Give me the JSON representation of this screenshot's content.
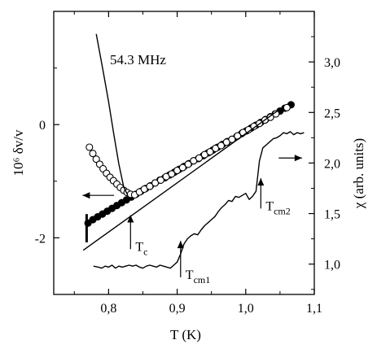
{
  "chart_data": {
    "type": "scatter",
    "annotation_frequency": "54.3 MHz",
    "xlabel": "T (K)",
    "ylabel_left": "10⁶ δv/v",
    "ylabel_right": "χ (arb. units)",
    "xlim": [
      0.72,
      1.1
    ],
    "ylim_left": [
      -3.0,
      2.0
    ],
    "ylim_right": [
      0.7,
      3.5
    ],
    "x_ticks": [
      "0,8",
      "0,9",
      "1,0",
      "1,1"
    ],
    "x_tick_values": [
      0.8,
      0.9,
      1.0,
      1.1
    ],
    "y_left_ticks": [
      "-2",
      "0"
    ],
    "y_left_tick_values": [
      -2,
      0
    ],
    "y_right_ticks": [
      "1,0",
      "1,5",
      "2,0",
      "2,5",
      "3,0"
    ],
    "y_right_tick_values": [
      1.0,
      1.5,
      2.0,
      2.5,
      3.0
    ],
    "annotations": [
      {
        "text_main": "T",
        "text_sub": "c",
        "x": 0.832,
        "axis": "left",
        "y_tip": -1.6,
        "y_tail": -2.2
      },
      {
        "text_main": "T",
        "text_sub": "cm1",
        "x": 0.905,
        "axis": "right",
        "y_tip": 1.23,
        "y_tail": 0.87
      },
      {
        "text_main": "T",
        "text_sub": "cm2",
        "x": 1.022,
        "axis": "right",
        "y_tip": 1.85,
        "y_tail": 1.55
      }
    ],
    "axis_arrows": [
      {
        "points_to": "left axis",
        "x_from": 0.808,
        "x_to": 0.762,
        "y": -1.25,
        "axis": "left"
      },
      {
        "points_to": "right axis",
        "x_from": 1.048,
        "x_to": 1.082,
        "y": 2.05,
        "axis": "right"
      }
    ],
    "series": [
      {
        "marker": "filled-circle",
        "axis": "left",
        "x": [
          0.77,
          0.777,
          0.784,
          0.791,
          0.798,
          0.805,
          0.812,
          0.819,
          0.826,
          0.833,
          0.84,
          0.847,
          0.854,
          0.861,
          0.868,
          0.875,
          0.882,
          0.889,
          0.896,
          0.903,
          0.91,
          0.917,
          0.924,
          0.931,
          0.938,
          0.945,
          0.952,
          0.959,
          0.966,
          0.973,
          0.98,
          0.987,
          0.994,
          1.001,
          1.008,
          1.015,
          1.022,
          1.029,
          1.036,
          1.043,
          1.05,
          1.057,
          1.066
        ],
        "y": [
          -1.74,
          -1.68,
          -1.63,
          -1.58,
          -1.53,
          -1.48,
          -1.43,
          -1.38,
          -1.33,
          -1.28,
          -1.23,
          -1.18,
          -1.13,
          -1.08,
          -1.03,
          -0.98,
          -0.94,
          -0.89,
          -0.84,
          -0.79,
          -0.74,
          -0.69,
          -0.64,
          -0.6,
          -0.55,
          -0.5,
          -0.45,
          -0.4,
          -0.35,
          -0.3,
          -0.26,
          -0.21,
          -0.16,
          -0.11,
          -0.06,
          -0.01,
          0.04,
          0.09,
          0.14,
          0.19,
          0.24,
          0.29,
          0.35
        ]
      },
      {
        "marker": "open-circle",
        "axis": "left",
        "x": [
          0.772,
          0.777,
          0.782,
          0.787,
          0.792,
          0.797,
          0.802,
          0.807,
          0.812,
          0.817,
          0.822,
          0.827,
          0.832,
          0.838,
          0.845,
          0.852,
          0.86,
          0.868,
          0.876,
          0.884,
          0.892,
          0.9,
          0.908,
          0.916,
          0.924,
          0.932,
          0.94,
          0.948,
          0.956,
          0.964,
          0.972,
          0.98,
          0.988,
          0.996,
          1.004,
          1.012,
          1.02,
          1.028,
          1.036,
          1.044,
          1.06
        ],
        "y": [
          -0.4,
          -0.51,
          -0.61,
          -0.7,
          -0.78,
          -0.86,
          -0.93,
          -0.99,
          -1.05,
          -1.11,
          -1.16,
          -1.2,
          -1.23,
          -1.24,
          -1.19,
          -1.14,
          -1.09,
          -1.03,
          -0.98,
          -0.92,
          -0.87,
          -0.81,
          -0.76,
          -0.7,
          -0.64,
          -0.59,
          -0.53,
          -0.48,
          -0.42,
          -0.37,
          -0.31,
          -0.26,
          -0.2,
          -0.14,
          -0.09,
          -0.03,
          0.02,
          0.08,
          0.13,
          0.19,
          0.3
        ]
      },
      {
        "marker": "line",
        "role": "steep curve",
        "axis": "left",
        "x": [
          0.782,
          0.792,
          0.8,
          0.808,
          0.815,
          0.822,
          0.828
        ],
        "y": [
          1.6,
          0.95,
          0.4,
          -0.2,
          -0.7,
          -1.1,
          -1.25
        ]
      },
      {
        "marker": "line",
        "role": "straight fit",
        "axis": "left",
        "x": [
          0.763,
          1.053
        ],
        "y": [
          -2.22,
          0.3
        ]
      },
      {
        "marker": "line",
        "role": "vertical drop",
        "axis": "left",
        "x": [
          0.768,
          0.768
        ],
        "y": [
          -1.58,
          -2.08
        ]
      },
      {
        "marker": "line",
        "role": "susceptibility",
        "axis": "right",
        "x": [
          0.778,
          0.785,
          0.79,
          0.795,
          0.8,
          0.805,
          0.81,
          0.815,
          0.82,
          0.825,
          0.83,
          0.835,
          0.84,
          0.845,
          0.85,
          0.855,
          0.86,
          0.865,
          0.87,
          0.875,
          0.88,
          0.885,
          0.89,
          0.895,
          0.9,
          0.905,
          0.91,
          0.915,
          0.92,
          0.925,
          0.93,
          0.935,
          0.94,
          0.945,
          0.95,
          0.955,
          0.96,
          0.965,
          0.97,
          0.975,
          0.98,
          0.985,
          0.99,
          0.995,
          1.0,
          1.005,
          1.01,
          1.015,
          1.02,
          1.025,
          1.03,
          1.035,
          1.04,
          1.045,
          1.05,
          1.055,
          1.06,
          1.065,
          1.07,
          1.075,
          1.08,
          1.085
        ],
        "y": [
          0.98,
          0.97,
          0.96,
          0.98,
          0.97,
          0.99,
          0.96,
          0.98,
          0.97,
          0.98,
          0.99,
          0.98,
          0.99,
          0.97,
          0.96,
          0.98,
          0.99,
          0.98,
          0.97,
          0.99,
          0.98,
          0.97,
          0.96,
          0.99,
          1.02,
          1.1,
          1.2,
          1.25,
          1.28,
          1.3,
          1.29,
          1.34,
          1.38,
          1.41,
          1.44,
          1.47,
          1.52,
          1.56,
          1.59,
          1.63,
          1.62,
          1.67,
          1.66,
          1.68,
          1.7,
          1.64,
          1.67,
          1.72,
          2.02,
          2.15,
          2.18,
          2.21,
          2.24,
          2.25,
          2.27,
          2.3,
          2.29,
          2.31,
          2.28,
          2.3,
          2.29,
          2.3
        ]
      }
    ]
  }
}
